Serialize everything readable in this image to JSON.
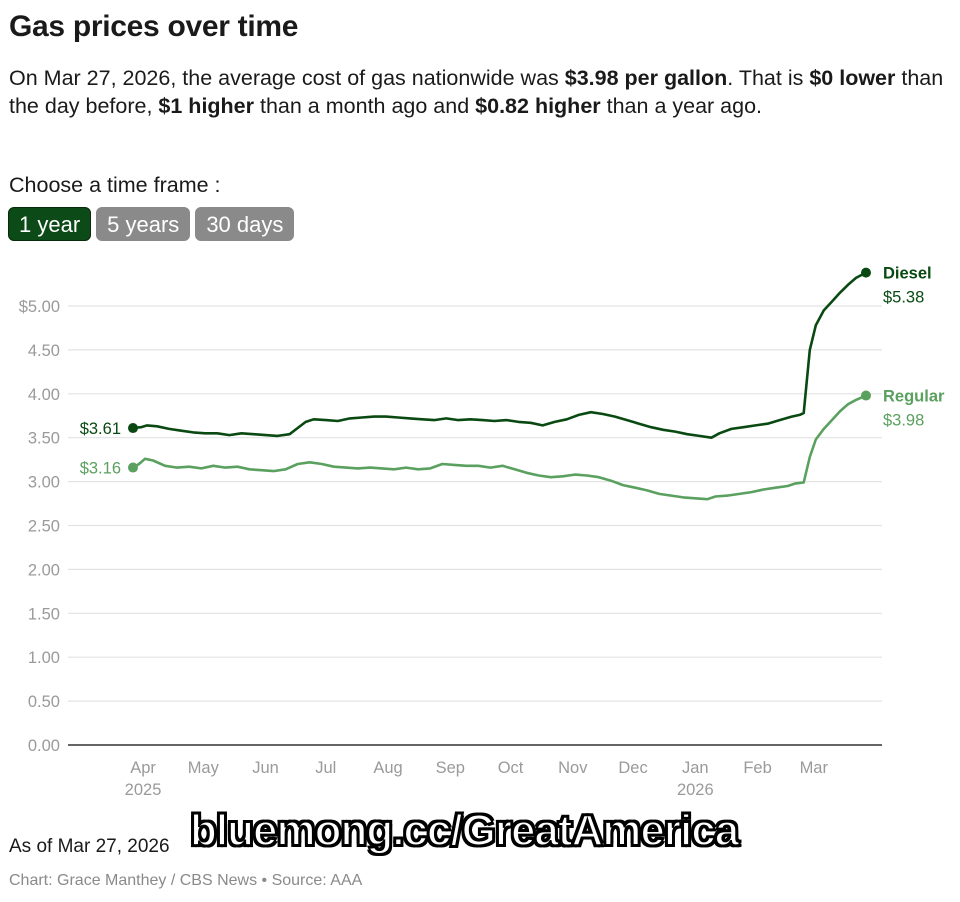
{
  "header": {
    "title": "Gas prices over time",
    "summary": {
      "p1": "On Mar 27, 2026, the average cost of gas nationwide was ",
      "b1": "$3.98 per gallon",
      "p2": ". That is ",
      "b2": "$0 lower",
      "p3": " than the day before, ",
      "b3": "$1 higher",
      "p4": " than a month ago and ",
      "b4": "$0.82 higher",
      "p5": " than a year ago."
    }
  },
  "timeframe": {
    "label": "Choose a time frame :",
    "options": [
      {
        "label": "1 year",
        "active": true
      },
      {
        "label": "5 years",
        "active": false
      },
      {
        "label": "30 days",
        "active": false
      }
    ]
  },
  "footer": {
    "as_of": "As of Mar 27, 2026",
    "credit": "Chart: Grace Manthey / CBS News • Source: AAA",
    "watermark": "bluemong.cc/GreatAmerica"
  },
  "colors": {
    "diesel": "#0a4a12",
    "regular": "#5aa05f",
    "grid": "#e3e3e3",
    "axis": "#333333",
    "active_button": "#0c4a17",
    "inactive_button": "#8a8a8a"
  },
  "chart_data": {
    "type": "line",
    "title": "Gas prices over time",
    "xlabel": "",
    "ylabel": "",
    "x_unit": "days since Mar 27, 2025",
    "xlim": [
      0,
      365
    ],
    "ylim": [
      0,
      5.0
    ],
    "y_ticks": [
      {
        "value": 0.0,
        "label": "0.00"
      },
      {
        "value": 0.5,
        "label": "0.50"
      },
      {
        "value": 1.0,
        "label": "1.00"
      },
      {
        "value": 1.5,
        "label": "1.50"
      },
      {
        "value": 2.0,
        "label": "2.00"
      },
      {
        "value": 2.5,
        "label": "2.50"
      },
      {
        "value": 3.0,
        "label": "3.00"
      },
      {
        "value": 3.5,
        "label": "3.50"
      },
      {
        "value": 4.0,
        "label": "4.00"
      },
      {
        "value": 4.5,
        "label": "4.50"
      },
      {
        "value": 5.0,
        "label": "$5.00"
      }
    ],
    "x_ticks": [
      {
        "day": 5,
        "label": "Apr",
        "sub": "2025"
      },
      {
        "day": 35,
        "label": "May",
        "sub": ""
      },
      {
        "day": 66,
        "label": "Jun",
        "sub": ""
      },
      {
        "day": 96,
        "label": "Jul",
        "sub": ""
      },
      {
        "day": 127,
        "label": "Aug",
        "sub": ""
      },
      {
        "day": 158,
        "label": "Sep",
        "sub": ""
      },
      {
        "day": 188,
        "label": "Oct",
        "sub": ""
      },
      {
        "day": 219,
        "label": "Nov",
        "sub": ""
      },
      {
        "day": 249,
        "label": "Dec",
        "sub": ""
      },
      {
        "day": 280,
        "label": "Jan",
        "sub": "2026"
      },
      {
        "day": 311,
        "label": "Feb",
        "sub": ""
      },
      {
        "day": 339,
        "label": "Mar",
        "sub": ""
      }
    ],
    "grid": true,
    "legend": "end-of-line labels (right)",
    "series": [
      {
        "name": "Diesel",
        "start_label": "$3.61",
        "end_label": "$5.38",
        "points": [
          [
            0,
            3.61
          ],
          [
            4,
            3.62
          ],
          [
            7,
            3.64
          ],
          [
            12,
            3.63
          ],
          [
            18,
            3.6
          ],
          [
            24,
            3.58
          ],
          [
            30,
            3.56
          ],
          [
            36,
            3.55
          ],
          [
            42,
            3.55
          ],
          [
            48,
            3.53
          ],
          [
            54,
            3.55
          ],
          [
            60,
            3.54
          ],
          [
            66,
            3.53
          ],
          [
            72,
            3.52
          ],
          [
            78,
            3.54
          ],
          [
            82,
            3.61
          ],
          [
            86,
            3.68
          ],
          [
            90,
            3.71
          ],
          [
            96,
            3.7
          ],
          [
            102,
            3.69
          ],
          [
            108,
            3.72
          ],
          [
            114,
            3.73
          ],
          [
            120,
            3.74
          ],
          [
            126,
            3.74
          ],
          [
            132,
            3.73
          ],
          [
            138,
            3.72
          ],
          [
            144,
            3.71
          ],
          [
            150,
            3.7
          ],
          [
            156,
            3.72
          ],
          [
            162,
            3.7
          ],
          [
            168,
            3.71
          ],
          [
            174,
            3.7
          ],
          [
            180,
            3.69
          ],
          [
            186,
            3.7
          ],
          [
            192,
            3.68
          ],
          [
            198,
            3.67
          ],
          [
            204,
            3.64
          ],
          [
            210,
            3.68
          ],
          [
            216,
            3.71
          ],
          [
            222,
            3.76
          ],
          [
            228,
            3.79
          ],
          [
            234,
            3.77
          ],
          [
            240,
            3.74
          ],
          [
            246,
            3.7
          ],
          [
            252,
            3.66
          ],
          [
            258,
            3.62
          ],
          [
            264,
            3.59
          ],
          [
            270,
            3.57
          ],
          [
            276,
            3.54
          ],
          [
            282,
            3.52
          ],
          [
            288,
            3.5
          ],
          [
            292,
            3.55
          ],
          [
            298,
            3.6
          ],
          [
            304,
            3.62
          ],
          [
            310,
            3.64
          ],
          [
            316,
            3.66
          ],
          [
            322,
            3.7
          ],
          [
            328,
            3.74
          ],
          [
            332,
            3.76
          ],
          [
            334,
            3.78
          ],
          [
            337,
            4.5
          ],
          [
            340,
            4.78
          ],
          [
            344,
            4.95
          ],
          [
            348,
            5.05
          ],
          [
            352,
            5.15
          ],
          [
            356,
            5.24
          ],
          [
            360,
            5.32
          ],
          [
            365,
            5.38
          ]
        ]
      },
      {
        "name": "Regular",
        "start_label": "$3.16",
        "end_label": "$3.98",
        "points": [
          [
            0,
            3.16
          ],
          [
            3,
            3.2
          ],
          [
            6,
            3.26
          ],
          [
            10,
            3.24
          ],
          [
            16,
            3.18
          ],
          [
            22,
            3.16
          ],
          [
            28,
            3.17
          ],
          [
            34,
            3.15
          ],
          [
            40,
            3.18
          ],
          [
            46,
            3.16
          ],
          [
            52,
            3.17
          ],
          [
            58,
            3.14
          ],
          [
            64,
            3.13
          ],
          [
            70,
            3.12
          ],
          [
            76,
            3.14
          ],
          [
            82,
            3.2
          ],
          [
            88,
            3.22
          ],
          [
            94,
            3.2
          ],
          [
            100,
            3.17
          ],
          [
            106,
            3.16
          ],
          [
            112,
            3.15
          ],
          [
            118,
            3.16
          ],
          [
            124,
            3.15
          ],
          [
            130,
            3.14
          ],
          [
            136,
            3.16
          ],
          [
            142,
            3.14
          ],
          [
            148,
            3.15
          ],
          [
            154,
            3.2
          ],
          [
            160,
            3.19
          ],
          [
            166,
            3.18
          ],
          [
            172,
            3.18
          ],
          [
            178,
            3.16
          ],
          [
            184,
            3.18
          ],
          [
            190,
            3.14
          ],
          [
            196,
            3.1
          ],
          [
            202,
            3.07
          ],
          [
            208,
            3.05
          ],
          [
            214,
            3.06
          ],
          [
            220,
            3.08
          ],
          [
            226,
            3.07
          ],
          [
            232,
            3.05
          ],
          [
            238,
            3.01
          ],
          [
            244,
            2.96
          ],
          [
            250,
            2.93
          ],
          [
            256,
            2.9
          ],
          [
            262,
            2.86
          ],
          [
            268,
            2.84
          ],
          [
            274,
            2.82
          ],
          [
            280,
            2.81
          ],
          [
            286,
            2.8
          ],
          [
            290,
            2.83
          ],
          [
            296,
            2.84
          ],
          [
            302,
            2.86
          ],
          [
            308,
            2.88
          ],
          [
            314,
            2.91
          ],
          [
            320,
            2.93
          ],
          [
            326,
            2.95
          ],
          [
            330,
            2.98
          ],
          [
            334,
            2.99
          ],
          [
            337,
            3.28
          ],
          [
            340,
            3.48
          ],
          [
            344,
            3.6
          ],
          [
            348,
            3.7
          ],
          [
            352,
            3.8
          ],
          [
            356,
            3.88
          ],
          [
            360,
            3.93
          ],
          [
            365,
            3.98
          ]
        ]
      }
    ]
  }
}
